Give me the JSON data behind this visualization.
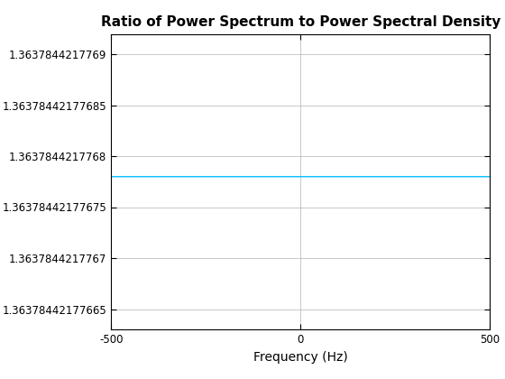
{
  "title": "Ratio of Power Spectrum to Power Spectral Density",
  "xlabel": "Frequency (Hz)",
  "xlim": [
    -500,
    500
  ],
  "x_ticks": [
    -500,
    0,
    500
  ],
  "line_value": 1.36378442177678,
  "ylim": [
    1.36378442177663,
    1.36378442177692
  ],
  "ytick_values": [
    1.3637844217769,
    1.36378442177685,
    1.3637844217768,
    1.36378442177675,
    1.3637844217767,
    1.36378442177665
  ],
  "ytick_labels": [
    "1.3637844217769",
    "1.36378442177685",
    "1.3637844217768",
    "1.36378442177675",
    "1.3637844217767",
    "1.36378442177665"
  ],
  "line_color": "#00BFFF",
  "background_color": "#ffffff",
  "grid_color": "#b0b0b0",
  "title_fontsize": 11,
  "label_fontsize": 10,
  "tick_fontsize": 8.5
}
